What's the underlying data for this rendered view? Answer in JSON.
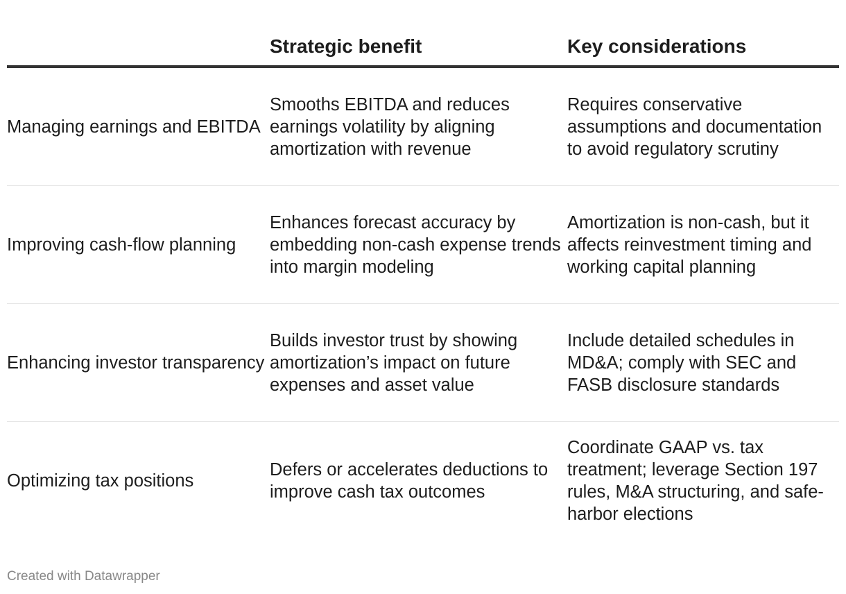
{
  "table": {
    "headers": [
      "",
      "Strategic benefit",
      "Key considerations"
    ],
    "rows": [
      {
        "label": "Managing earnings and EBITDA",
        "benefit": "Smooths EBITDA and reduces earnings volatility by aligning amortization with revenue",
        "considerations": "Requires conservative assumptions and documentation to avoid regulatory scrutiny"
      },
      {
        "label": "Improving cash-flow planning",
        "benefit": "Enhances forecast accuracy by embedding non-cash expense trends into margin modeling",
        "considerations": "Amortization is non-cash, but it affects reinvestment timing and working capital planning"
      },
      {
        "label": "Enhancing investor transparency",
        "benefit": "Builds investor trust by showing amortization’s impact on future expenses and asset value",
        "considerations": "Include detailed schedules in MD&A; comply with SEC and FASB disclosure standards"
      },
      {
        "label": "Optimizing tax positions",
        "benefit": "Defers or accelerates deductions to improve cash tax outcomes",
        "considerations": "Coordinate GAAP vs. tax treatment; leverage Section 197 rules, M&A structuring, and safe-harbor elections"
      }
    ]
  },
  "footer": {
    "credit": "Created with Datawrapper"
  }
}
